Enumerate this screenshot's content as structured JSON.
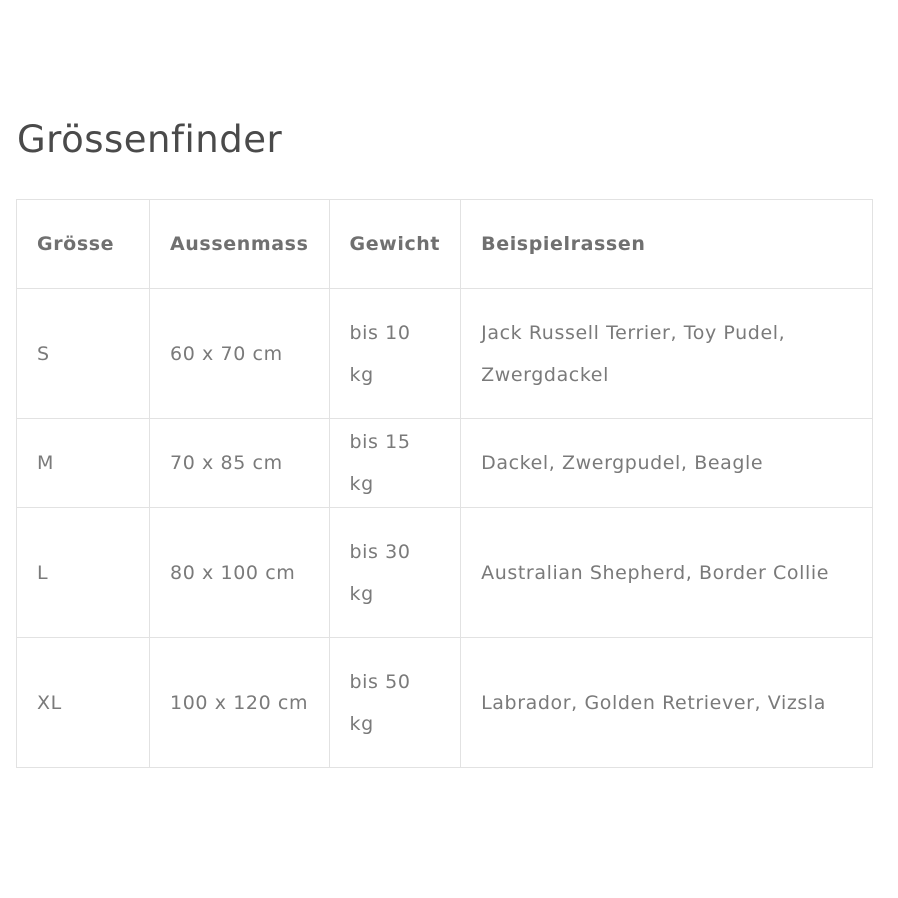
{
  "title": "Grössenfinder",
  "headers": [
    "Grösse",
    "Aussenmass",
    "Gewicht",
    "Beispielrassen"
  ],
  "rows": [
    [
      "S",
      "60 x 70 cm",
      "bis 10 kg",
      "Jack Russell Terrier, Toy Pudel, Zwergdackel"
    ],
    [
      "M",
      "70 x 85 cm",
      "bis 15 kg",
      "Dackel, Zwergpudel, Beagle"
    ],
    [
      "L",
      "80 x 100 cm",
      "bis 30 kg",
      "Australian Shepherd, Border Collie"
    ],
    [
      "XL",
      "100 x 120 cm",
      "bis 50 kg",
      "Labrador, Golden Retriever, Vizsla"
    ]
  ]
}
